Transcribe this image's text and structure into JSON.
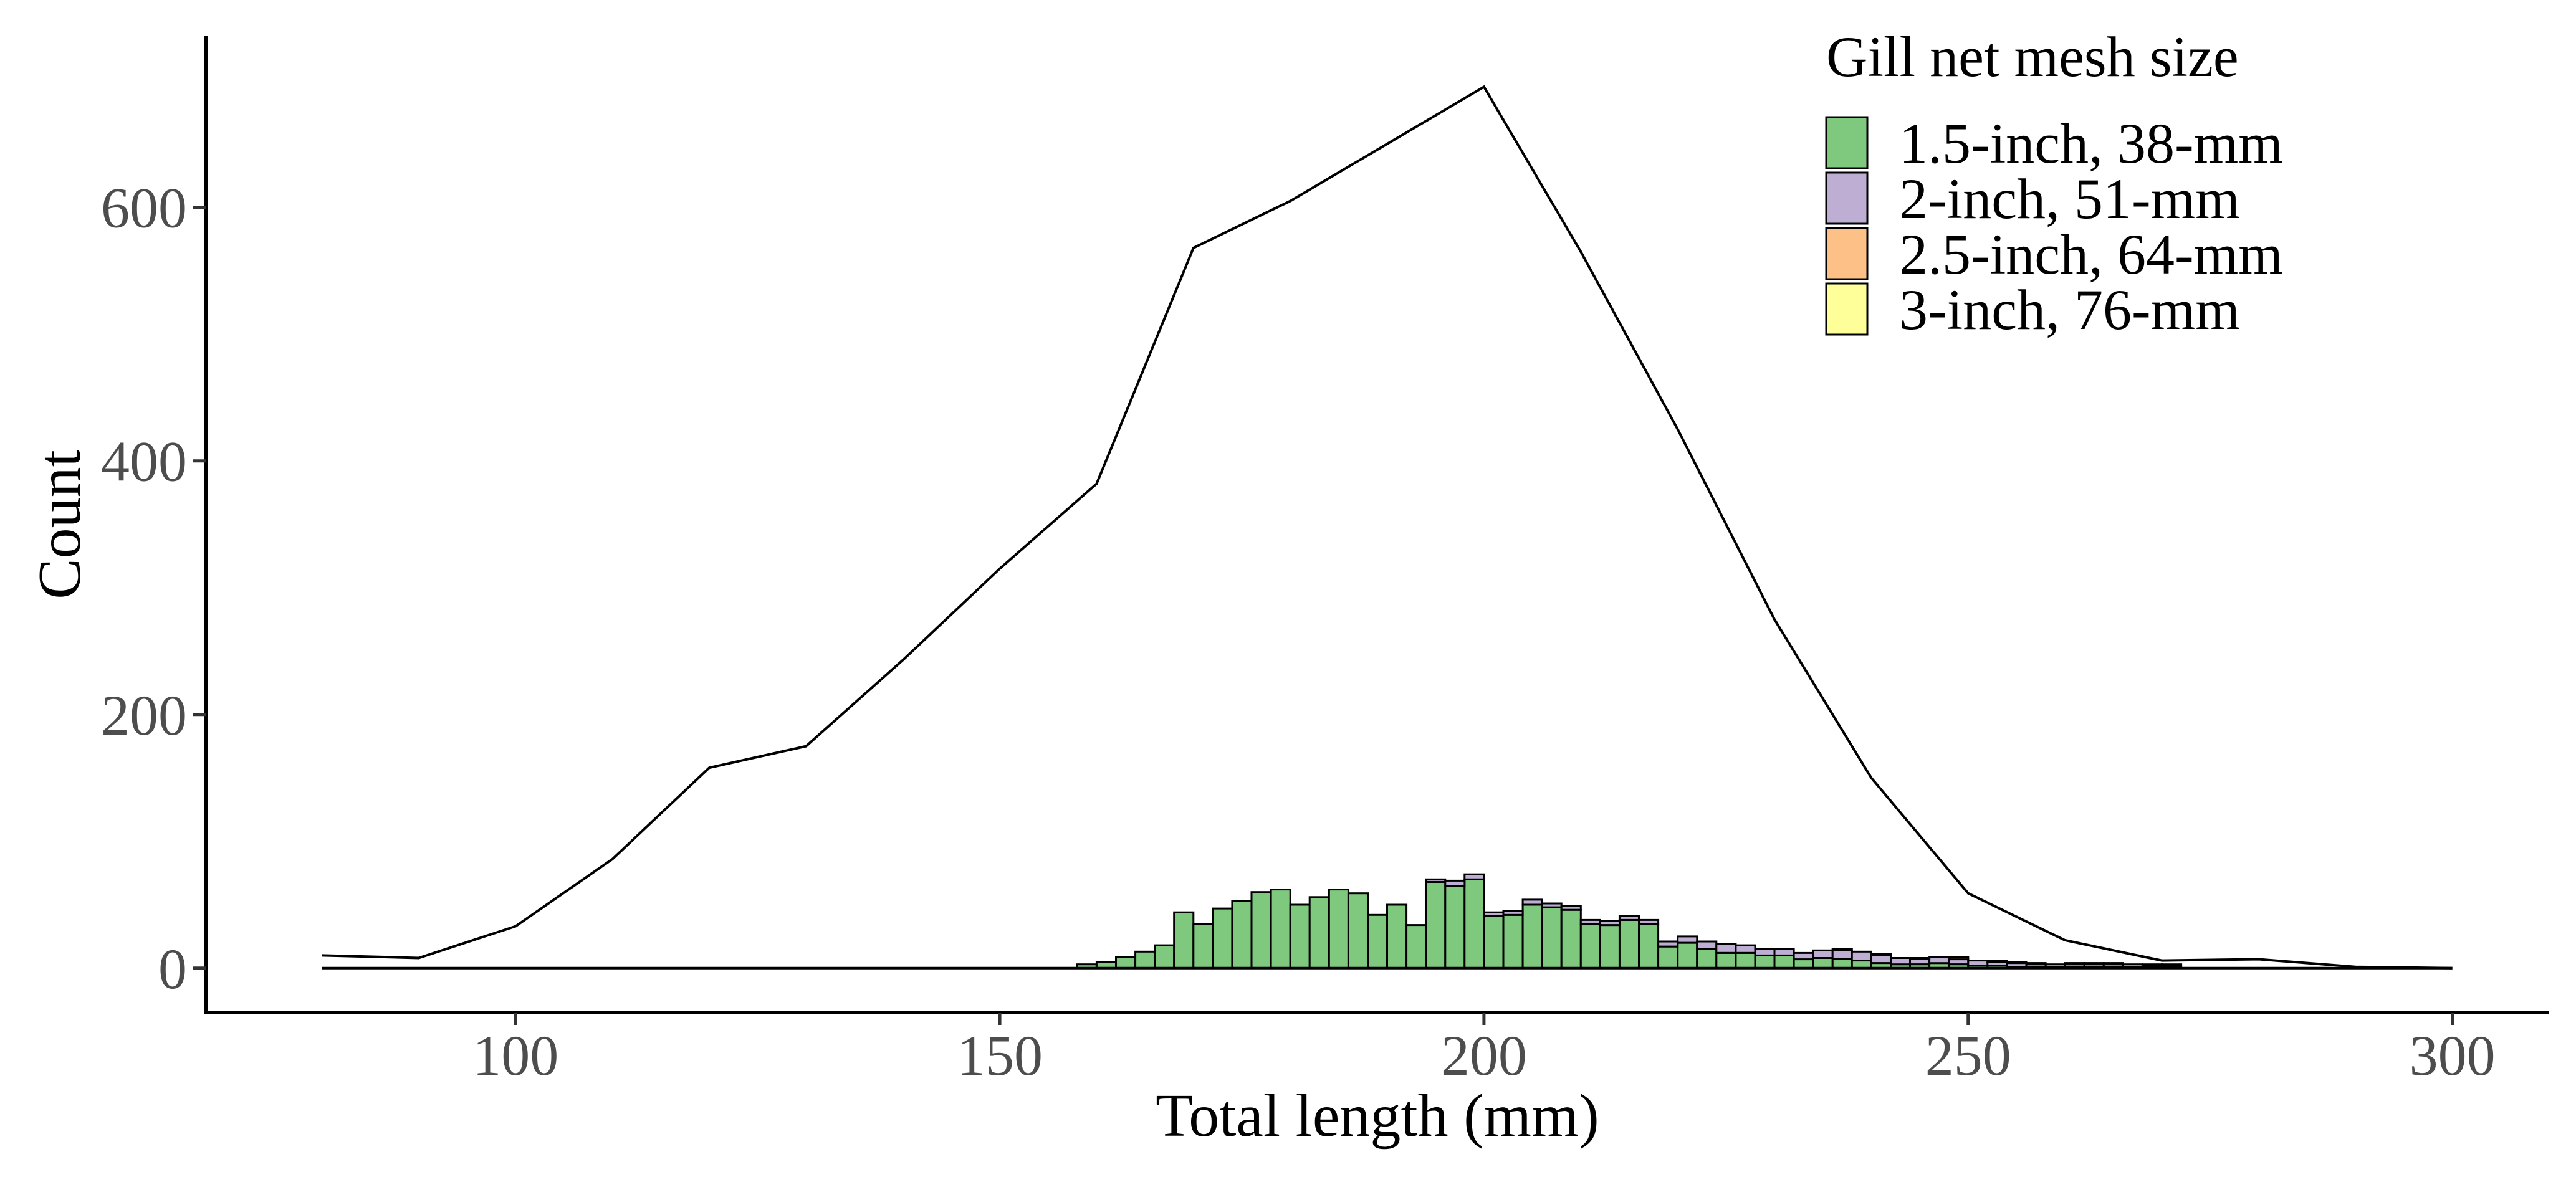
{
  "chart_data": {
    "type": "bar",
    "xlabel": "Total length (mm)",
    "ylabel": "Count",
    "xlim": [
      68,
      310
    ],
    "ylim": [
      -35,
      735
    ],
    "x_ticks": [
      "100",
      "150",
      "200",
      "250",
      "300"
    ],
    "x_tick_values": [
      100,
      150,
      200,
      250,
      300
    ],
    "y_ticks": [
      "0",
      "200",
      "400",
      "600"
    ],
    "y_tick_values": [
      0,
      200,
      400,
      600
    ],
    "grid": false,
    "bin_width": 2,
    "legend": {
      "title": "Gill net mesh size",
      "placement": "top-right",
      "entries": [
        {
          "label": "1.5-inch, 38-mm",
          "color": "#7fc97f"
        },
        {
          "label": "2-inch, 51-mm",
          "color": "#beaed4"
        },
        {
          "label": "2.5-inch, 64-mm",
          "color": "#fdc086"
        },
        {
          "label": "3-inch, 76-mm",
          "color": "#ffff99"
        }
      ]
    },
    "line_series": {
      "color": "#000000",
      "x": [
        80,
        90,
        100,
        110,
        120,
        130,
        140,
        150,
        160,
        170,
        180,
        190,
        200,
        210,
        220,
        230,
        240,
        250,
        260,
        270,
        280,
        290,
        300
      ],
      "y": [
        10,
        8,
        33,
        86,
        158,
        175,
        243,
        315,
        382,
        568,
        605,
        650,
        695,
        565,
        425,
        275,
        150,
        59,
        22,
        6,
        7,
        1,
        0
      ]
    },
    "baseline": {
      "x": [
        80,
        300
      ],
      "y": [
        0,
        0
      ]
    },
    "series": [
      {
        "name": "1.5-inch, 38-mm",
        "color": "#7fc97f",
        "x": [
          158,
          160,
          162,
          164,
          166,
          168,
          170,
          172,
          174,
          176,
          178,
          180,
          182,
          184,
          186,
          188,
          190,
          192,
          194,
          196,
          198,
          200,
          202,
          204,
          206,
          208,
          210,
          212,
          214,
          216,
          218,
          220,
          222,
          224,
          226,
          228,
          230,
          232,
          234,
          236,
          238,
          240,
          242,
          244,
          246,
          248,
          250,
          252,
          254,
          256,
          258,
          260,
          262,
          264,
          266,
          268,
          270
        ],
        "values": [
          3,
          5,
          9,
          13,
          18,
          44,
          35,
          47,
          53,
          60,
          62,
          50,
          56,
          62,
          59,
          42,
          50,
          34,
          68,
          65,
          70,
          41,
          42,
          50,
          48,
          46,
          35,
          34,
          38,
          35,
          17,
          20,
          15,
          12,
          12,
          10,
          10,
          7,
          8,
          7,
          6,
          4,
          3,
          3,
          4,
          3,
          2,
          2,
          1,
          1,
          1,
          1,
          1,
          1,
          1,
          1,
          1
        ]
      },
      {
        "name": "2-inch, 51-mm",
        "color": "#beaed4",
        "x": [
          194,
          196,
          198,
          200,
          202,
          204,
          206,
          208,
          210,
          212,
          214,
          216,
          218,
          220,
          222,
          224,
          226,
          228,
          230,
          232,
          234,
          236,
          238,
          240,
          242,
          244,
          246,
          248,
          250,
          252,
          254,
          256,
          258,
          260,
          262,
          264,
          266,
          268,
          270
        ],
        "values": [
          2,
          4,
          4,
          3,
          3,
          4,
          3,
          3,
          3,
          3,
          3,
          3,
          4,
          5,
          6,
          7,
          6,
          5,
          5,
          5,
          6,
          7,
          7,
          6,
          5,
          4,
          5,
          4,
          4,
          3,
          3,
          2,
          2,
          2,
          2,
          2,
          2,
          1,
          1
        ]
      },
      {
        "name": "2.5-inch, 64-mm",
        "color": "#fdc086",
        "x": [
          236,
          240,
          244,
          248,
          252,
          256,
          260,
          264,
          268
        ],
        "values": [
          1,
          1,
          1,
          2,
          1,
          1,
          1,
          1,
          1
        ]
      },
      {
        "name": "3-inch, 76-mm",
        "color": "#ffff99",
        "x": [
          254,
          262,
          270
        ],
        "values": [
          1,
          1,
          1
        ]
      }
    ]
  }
}
